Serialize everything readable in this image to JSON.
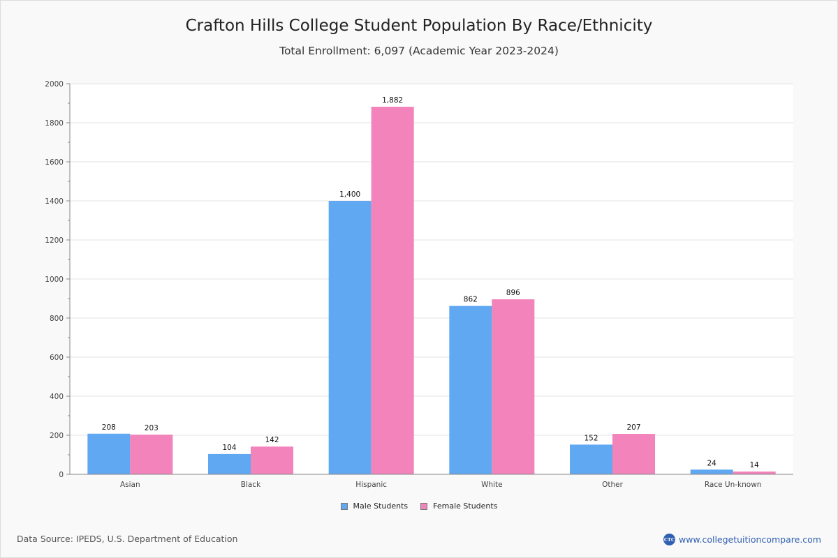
{
  "chart_data": {
    "type": "bar",
    "title": "Crafton Hills College Student Population By Race/Ethnicity",
    "subtitle": "Total Enrollment: 6,097 (Academic Year 2023-2024)",
    "xlabel": "",
    "ylabel": "",
    "ylim": [
      0,
      2000
    ],
    "yticks": [
      0,
      200,
      400,
      600,
      800,
      1000,
      1200,
      1400,
      1600,
      1800,
      2000
    ],
    "grid": true,
    "legend_position": "bottom",
    "categories": [
      "Asian",
      "Black",
      "Hispanic",
      "White",
      "Other",
      "Race Un-known"
    ],
    "series": [
      {
        "name": "Male Students",
        "color": "#60a8f2",
        "values": [
          208,
          104,
          1400,
          862,
          152,
          24
        ],
        "labels": [
          "208",
          "104",
          "1,400",
          "862",
          "152",
          "24"
        ]
      },
      {
        "name": "Female Students",
        "color": "#f283bb",
        "values": [
          203,
          142,
          1882,
          896,
          207,
          14
        ],
        "labels": [
          "203",
          "142",
          "1,882",
          "896",
          "207",
          "14"
        ]
      }
    ]
  },
  "footer": {
    "source": "Data Source: IPEDS, U.S. Department of Education",
    "brand_logo_text": "CTC",
    "brand_url": "www.collegetuitioncompare.com"
  }
}
